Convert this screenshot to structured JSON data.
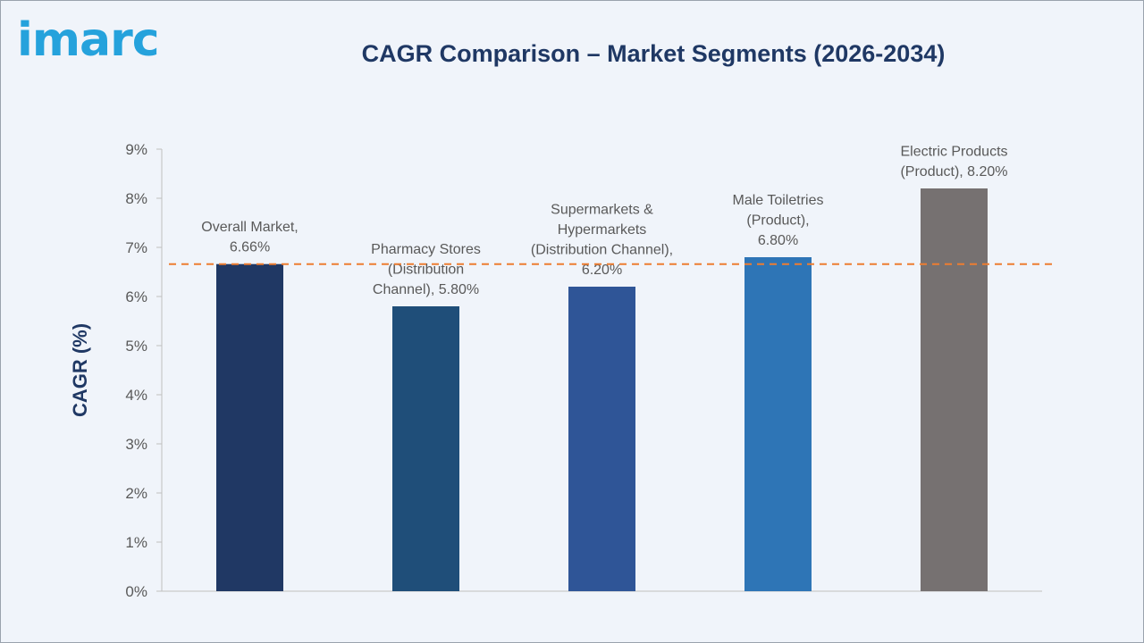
{
  "logo": {
    "text": "imarc"
  },
  "colors": {
    "title": "#1f3864",
    "axis_label": "#1f3864",
    "tick_text": "#595959",
    "reference_line": "#ed7d31",
    "axis_line": "#bfbfbf"
  },
  "chart_data": {
    "type": "bar",
    "title": "CAGR Comparison – Market Segments (2026-2034)",
    "xlabel": "",
    "ylabel": "CAGR (%)",
    "ylim": [
      0,
      9
    ],
    "yticks": [
      0,
      1,
      2,
      3,
      4,
      5,
      6,
      7,
      8,
      9
    ],
    "ytick_labels": [
      "0%",
      "1%",
      "2%",
      "3%",
      "4%",
      "5%",
      "6%",
      "7%",
      "8%",
      "9%"
    ],
    "grid": false,
    "legend": "none",
    "categories": [
      "Overall Market",
      "Pharmacy Stores (Distribution Channel)",
      "Supermarkets & Hypermarkets (Distribution Channel)",
      "Male Toiletries (Product)",
      "Electric Products (Product)"
    ],
    "values": [
      6.66,
      5.8,
      6.2,
      6.8,
      8.2
    ],
    "bar_colors": [
      "#203864",
      "#1f4e79",
      "#2f5597",
      "#2e75b6",
      "#767171"
    ],
    "data_labels": [
      [
        "Overall Market,",
        "6.66%"
      ],
      [
        "Pharmacy Stores",
        "(Distribution",
        "Channel), 5.80%"
      ],
      [
        "Supermarkets &",
        "Hypermarkets",
        "(Distribution Channel),",
        "6.20%"
      ],
      [
        "Male Toiletries",
        "(Product),",
        "6.80%"
      ],
      [
        "Electric Products",
        "(Product), 8.20%"
      ]
    ],
    "reference_line": {
      "value": 6.66,
      "style": "dashed"
    }
  }
}
